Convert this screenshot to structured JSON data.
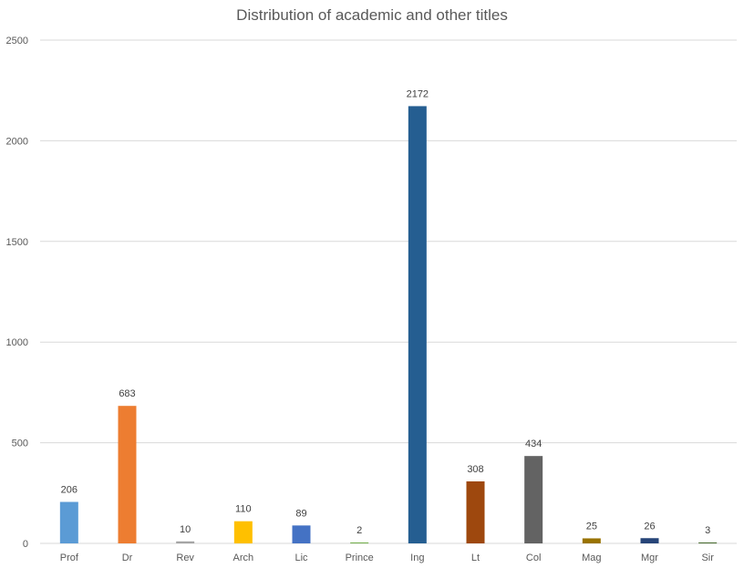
{
  "chart_data": {
    "type": "bar",
    "title": "Distribution of academic and other titles",
    "xlabel": "",
    "ylabel": "",
    "ylim": [
      0,
      2500
    ],
    "yticks": [
      0,
      500,
      1000,
      1500,
      2000,
      2500
    ],
    "grid": true,
    "legend": "none",
    "categories": [
      "Prof",
      "Dr",
      "Rev",
      "Arch",
      "Lic",
      "Prince",
      "Ing",
      "Lt",
      "Col",
      "Mag",
      "Mgr",
      "Sir"
    ],
    "values": [
      206,
      683,
      10,
      110,
      89,
      2,
      2172,
      308,
      434,
      25,
      26,
      3
    ],
    "colors": [
      "#5b9bd5",
      "#ed7d31",
      "#a5a5a5",
      "#ffc000",
      "#4472c4",
      "#70ad47",
      "#255e91",
      "#9e480e",
      "#636363",
      "#997300",
      "#264478",
      "#43682b"
    ]
  }
}
